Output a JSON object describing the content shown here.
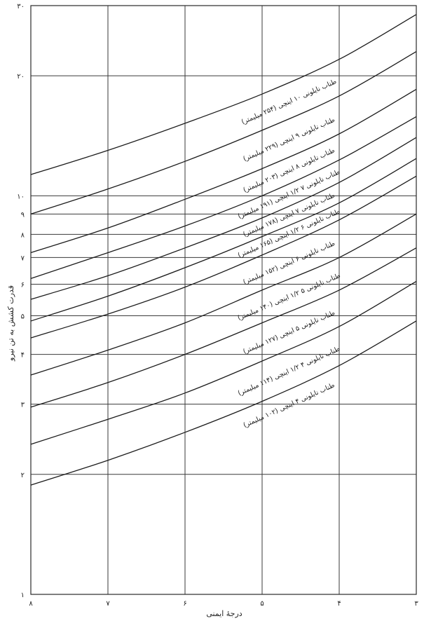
{
  "chart_data": {
    "type": "line",
    "title": "",
    "xlabel": "درجهٔ ایمنی",
    "ylabel": "قدرت کشش به تن نیرو",
    "xlim": [
      8,
      3
    ],
    "ylim": [
      1,
      30
    ],
    "yscale": "log",
    "grid": true,
    "x_ticks": [
      "۸",
      "۷",
      "۶",
      "۵",
      "۴",
      "۳"
    ],
    "x_tick_values": [
      8,
      7,
      6,
      5,
      4,
      3
    ],
    "y_ticks": [
      "۱",
      "۲",
      "۳",
      "۴",
      "۵",
      "۶",
      "۷",
      "۸",
      "۹",
      "۱۰",
      "۲۰",
      "۳۰"
    ],
    "y_tick_values": [
      1,
      2,
      3,
      4,
      5,
      6,
      7,
      8,
      9,
      10,
      20,
      30
    ],
    "x": [
      8,
      7,
      6,
      5,
      4,
      3
    ],
    "series": [
      {
        "name": "طناب نایلونی ۱۰ اینچی (۲۵۴ میلیمتر)",
        "values": [
          11.3,
          13.0,
          15.2,
          18.0,
          22.0,
          28.5
        ]
      },
      {
        "name": "طناب نایلونی ۹ اینچی (۲۲۹ میلیمتر)",
        "values": [
          9.0,
          10.4,
          12.2,
          14.6,
          17.8,
          23.0
        ]
      },
      {
        "name": "طناب نایلونی ۸ اینچی (۲۰۳ میلیمتر)",
        "values": [
          7.2,
          8.3,
          9.8,
          11.7,
          14.3,
          18.5
        ]
      },
      {
        "name": "طناب نایلونی ۷ ۱/۲ اینچی (۱۹۱ میلیمتر)",
        "values": [
          6.2,
          7.2,
          8.4,
          10.0,
          12.3,
          15.8
        ]
      },
      {
        "name": "طناب نایلونی ۷ اینچی (۱۷۸ میلیمتر)",
        "values": [
          5.5,
          6.3,
          7.4,
          8.8,
          10.8,
          14.0
        ]
      },
      {
        "name": "طناب نایلونی ۶ ۱/۲ اینچی (۱۶۵ میلیمتر)",
        "values": [
          4.85,
          5.6,
          6.6,
          7.9,
          9.6,
          12.4
        ]
      },
      {
        "name": "طناب نایلونی ۶ اینچی (۱۵۲ میلیمتر)",
        "values": [
          4.4,
          5.05,
          5.9,
          7.1,
          8.7,
          11.2
        ]
      },
      {
        "name": "طناب نایلونی ۵ ۱/۲ اینچی (۱۴۰ میلیمتر)",
        "values": [
          3.55,
          4.1,
          4.8,
          5.8,
          7.0,
          9.0
        ]
      },
      {
        "name": "طناب نایلونی ۵ اینچی (۱۲۷ میلیمتر)",
        "values": [
          2.95,
          3.4,
          4.0,
          4.8,
          5.8,
          7.4
        ]
      },
      {
        "name": "طناب نایلونی ۴ ۱/۲ اینچی (۱۱۴ میلیمتر)",
        "values": [
          2.38,
          2.75,
          3.2,
          3.85,
          4.7,
          6.1
        ]
      },
      {
        "name": "طناب نایلونی ۴ اینچی (۱۰۲ میلیمتر)",
        "values": [
          1.88,
          2.17,
          2.55,
          3.05,
          3.75,
          4.85
        ]
      }
    ]
  }
}
